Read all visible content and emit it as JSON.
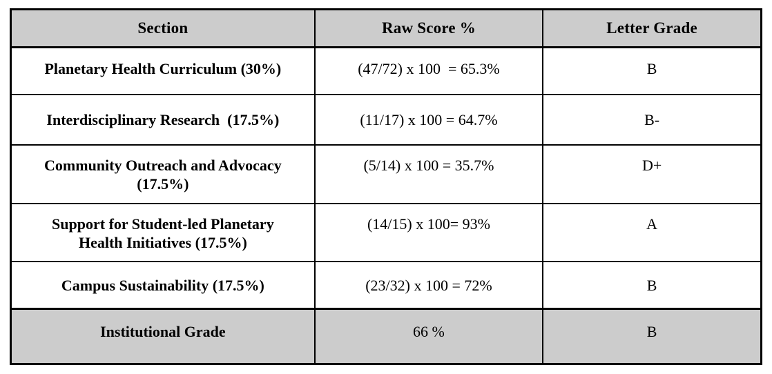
{
  "table": {
    "headers": [
      "Section",
      "Raw Score %",
      "Letter Grade"
    ],
    "rows": [
      {
        "section": "Planetary Health Curriculum (30%)",
        "score": "(47/72) x 100  = 65.3%",
        "grade": "B"
      },
      {
        "section": "Interdisciplinary Research  (17.5%)",
        "score": "(11/17) x 100 = 64.7%",
        "grade": "B-"
      },
      {
        "section": "Community Outreach and Advocacy\n(17.5%)",
        "score": "(5/14) x 100 = 35.7%",
        "grade": "D+"
      },
      {
        "section": "Support for Student-led Planetary\nHealth Initiatives (17.5%)",
        "score": "(14/15) x 100= 93%",
        "grade": "A"
      },
      {
        "section": "Campus Sustainability (17.5%)",
        "score": "(23/32) x 100 = 72%",
        "grade": "B"
      }
    ],
    "footer": {
      "section": "Institutional Grade",
      "score": "66 %",
      "grade": "B"
    }
  },
  "colors": {
    "header_bg": "#cccccc",
    "footer_bg": "#cccccc",
    "border": "#000000",
    "text": "#000000",
    "row_bg": "#ffffff"
  }
}
